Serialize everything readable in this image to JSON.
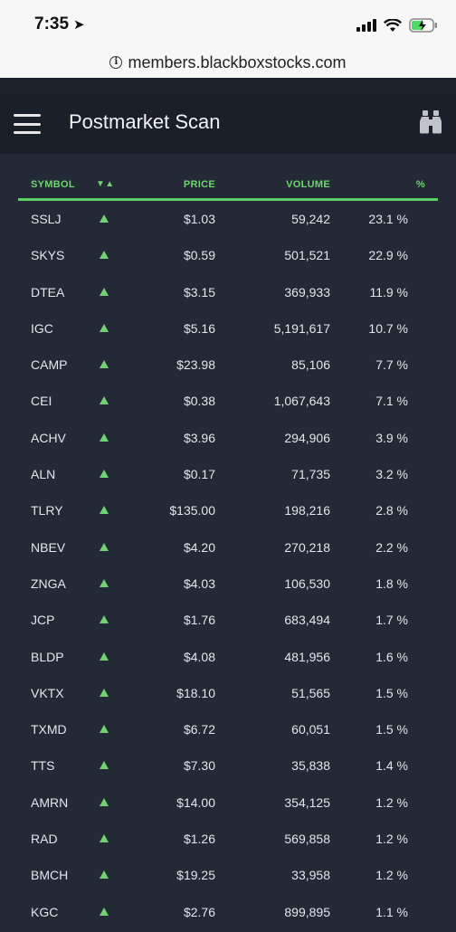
{
  "status_bar": {
    "time": "7:35",
    "url": "members.blackboxstocks.com"
  },
  "header": {
    "title": "Postmarket Scan"
  },
  "table": {
    "columns": {
      "symbol": "SYMBOL",
      "sort": "▼▲",
      "price": "PRICE",
      "volume": "VOLUME",
      "pct": "%"
    },
    "rows": [
      {
        "symbol": "SSLJ",
        "price": "$1.03",
        "volume": "59,242",
        "pct": "23.1 %"
      },
      {
        "symbol": "SKYS",
        "price": "$0.59",
        "volume": "501,521",
        "pct": "22.9 %"
      },
      {
        "symbol": "DTEA",
        "price": "$3.15",
        "volume": "369,933",
        "pct": "11.9 %"
      },
      {
        "symbol": "IGC",
        "price": "$5.16",
        "volume": "5,191,617",
        "pct": "10.7 %"
      },
      {
        "symbol": "CAMP",
        "price": "$23.98",
        "volume": "85,106",
        "pct": "7.7 %"
      },
      {
        "symbol": "CEI",
        "price": "$0.38",
        "volume": "1,067,643",
        "pct": "7.1 %"
      },
      {
        "symbol": "ACHV",
        "price": "$3.96",
        "volume": "294,906",
        "pct": "3.9 %"
      },
      {
        "symbol": "ALN",
        "price": "$0.17",
        "volume": "71,735",
        "pct": "3.2 %"
      },
      {
        "symbol": "TLRY",
        "price": "$135.00",
        "volume": "198,216",
        "pct": "2.8 %"
      },
      {
        "symbol": "NBEV",
        "price": "$4.20",
        "volume": "270,218",
        "pct": "2.2 %"
      },
      {
        "symbol": "ZNGA",
        "price": "$4.03",
        "volume": "106,530",
        "pct": "1.8 %"
      },
      {
        "symbol": "JCP",
        "price": "$1.76",
        "volume": "683,494",
        "pct": "1.7 %"
      },
      {
        "symbol": "BLDP",
        "price": "$4.08",
        "volume": "481,956",
        "pct": "1.6 %"
      },
      {
        "symbol": "VKTX",
        "price": "$18.10",
        "volume": "51,565",
        "pct": "1.5 %"
      },
      {
        "symbol": "TXMD",
        "price": "$6.72",
        "volume": "60,051",
        "pct": "1.5 %"
      },
      {
        "symbol": "TTS",
        "price": "$7.30",
        "volume": "35,838",
        "pct": "1.4 %"
      },
      {
        "symbol": "AMRN",
        "price": "$14.00",
        "volume": "354,125",
        "pct": "1.2 %"
      },
      {
        "symbol": "RAD",
        "price": "$1.26",
        "volume": "569,858",
        "pct": "1.2 %"
      },
      {
        "symbol": "BMCH",
        "price": "$19.25",
        "volume": "33,958",
        "pct": "1.2 %"
      },
      {
        "symbol": "KGC",
        "price": "$2.76",
        "volume": "899,895",
        "pct": "1.1 %"
      }
    ]
  },
  "colors": {
    "accent_green": "#6fd46f",
    "background": "#232a35",
    "header_bg": "#1a2029"
  }
}
